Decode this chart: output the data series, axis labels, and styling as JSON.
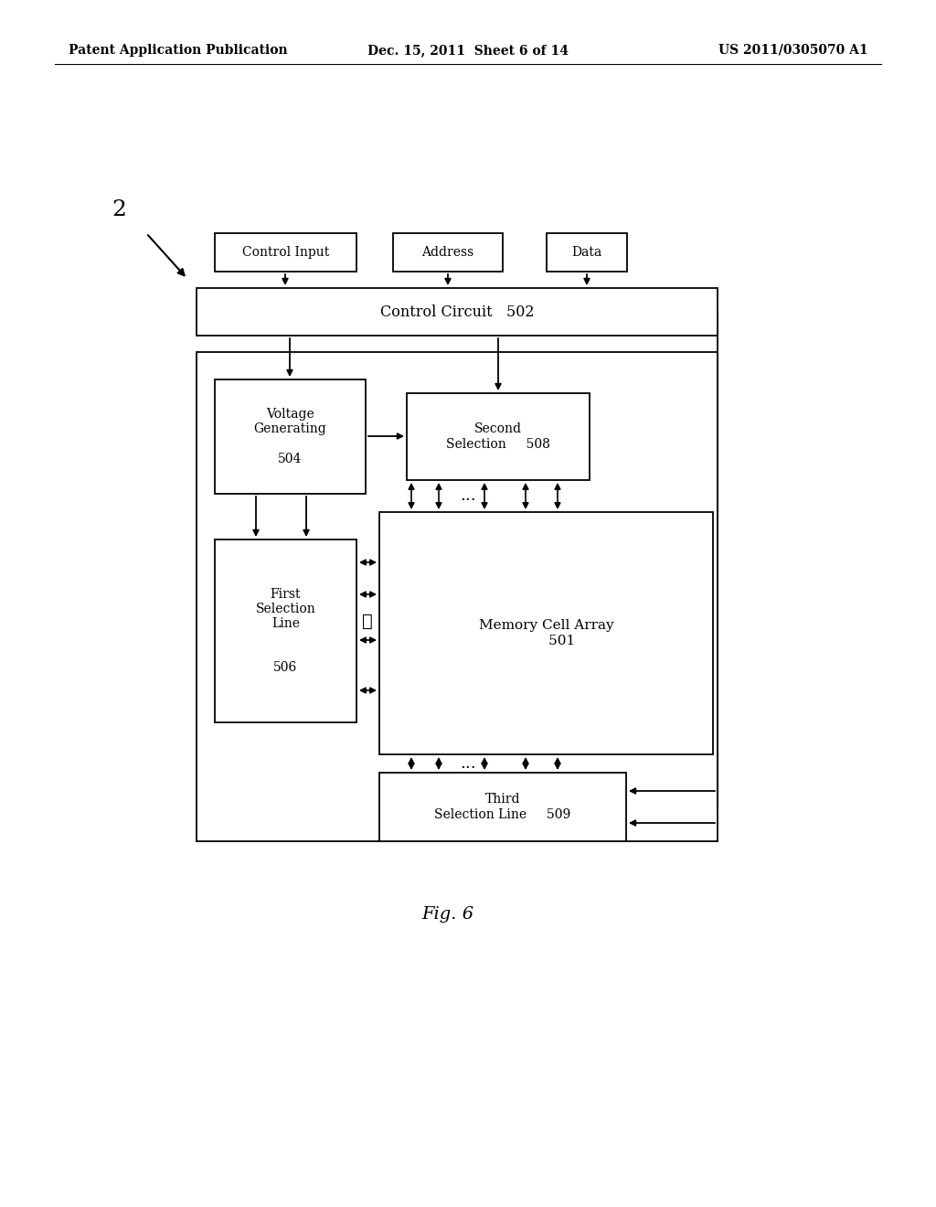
{
  "background_color": "#ffffff",
  "header_left": "Patent Application Publication",
  "header_center": "Dec. 15, 2011  Sheet 6 of 14",
  "header_right": "US 2011/0305070 A1",
  "fig_label": "Fig. 6",
  "diagram_label": "2"
}
